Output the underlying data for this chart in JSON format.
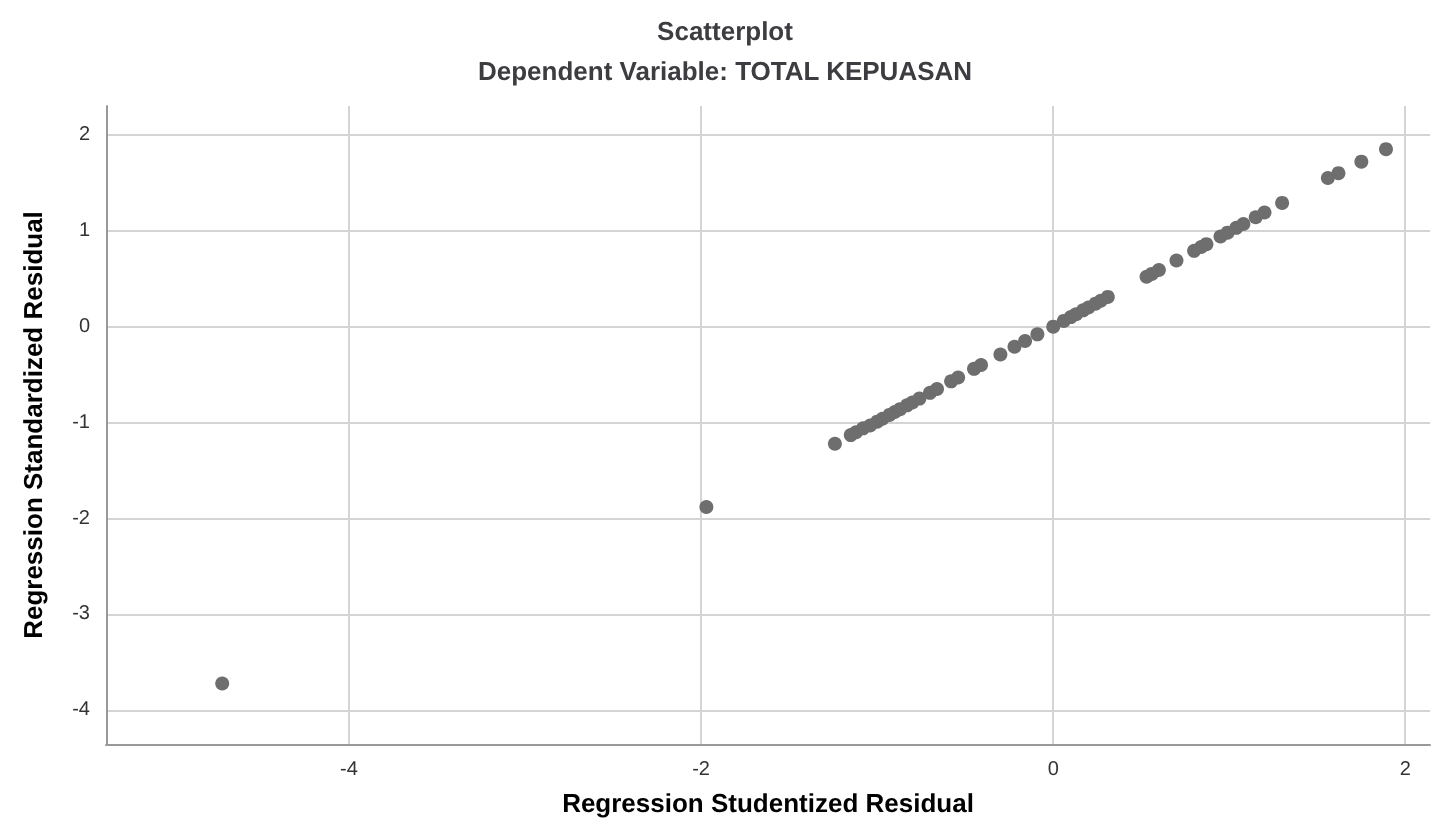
{
  "chart_data": {
    "type": "scatter",
    "title": "Scatterplot",
    "subtitle": "Dependent Variable: TOTAL KEPUASAN",
    "xlabel": "Regression Studentized Residual",
    "ylabel": "Regression Standardized Residual",
    "x": [
      -4.72,
      -1.97,
      -1.24,
      -1.15,
      -1.12,
      -1.08,
      -1.04,
      -1.0,
      -0.97,
      -0.93,
      -0.9,
      -0.87,
      -0.83,
      -0.8,
      -0.76,
      -0.7,
      -0.66,
      -0.58,
      -0.54,
      -0.45,
      -0.41,
      -0.3,
      -0.22,
      -0.16,
      -0.09,
      0.0,
      0.06,
      0.1,
      0.13,
      0.17,
      0.2,
      0.24,
      0.27,
      0.31,
      0.53,
      0.56,
      0.6,
      0.7,
      0.8,
      0.84,
      0.87,
      0.95,
      0.99,
      1.04,
      1.08,
      1.15,
      1.2,
      1.3,
      1.56,
      1.62,
      1.75,
      1.89
    ],
    "values": [
      -3.72,
      -1.88,
      -1.22,
      -1.13,
      -1.1,
      -1.06,
      -1.03,
      -0.99,
      -0.96,
      -0.92,
      -0.89,
      -0.86,
      -0.82,
      -0.79,
      -0.75,
      -0.69,
      -0.65,
      -0.57,
      -0.53,
      -0.44,
      -0.4,
      -0.29,
      -0.21,
      -0.15,
      -0.08,
      0.0,
      0.06,
      0.1,
      0.13,
      0.17,
      0.2,
      0.24,
      0.27,
      0.31,
      0.52,
      0.55,
      0.59,
      0.69,
      0.79,
      0.83,
      0.86,
      0.94,
      0.98,
      1.03,
      1.07,
      1.14,
      1.19,
      1.29,
      1.55,
      1.6,
      1.72,
      1.85
    ],
    "color": "#6e6e6e",
    "marker": "circle",
    "grid": true,
    "xlim": [
      -5.38,
      2.14
    ],
    "xticks": [
      -4,
      -2,
      0,
      2
    ],
    "ylim": [
      -4.35,
      2.3
    ],
    "yticks": [
      -4,
      -3,
      -2,
      -1,
      0,
      1,
      2
    ]
  }
}
